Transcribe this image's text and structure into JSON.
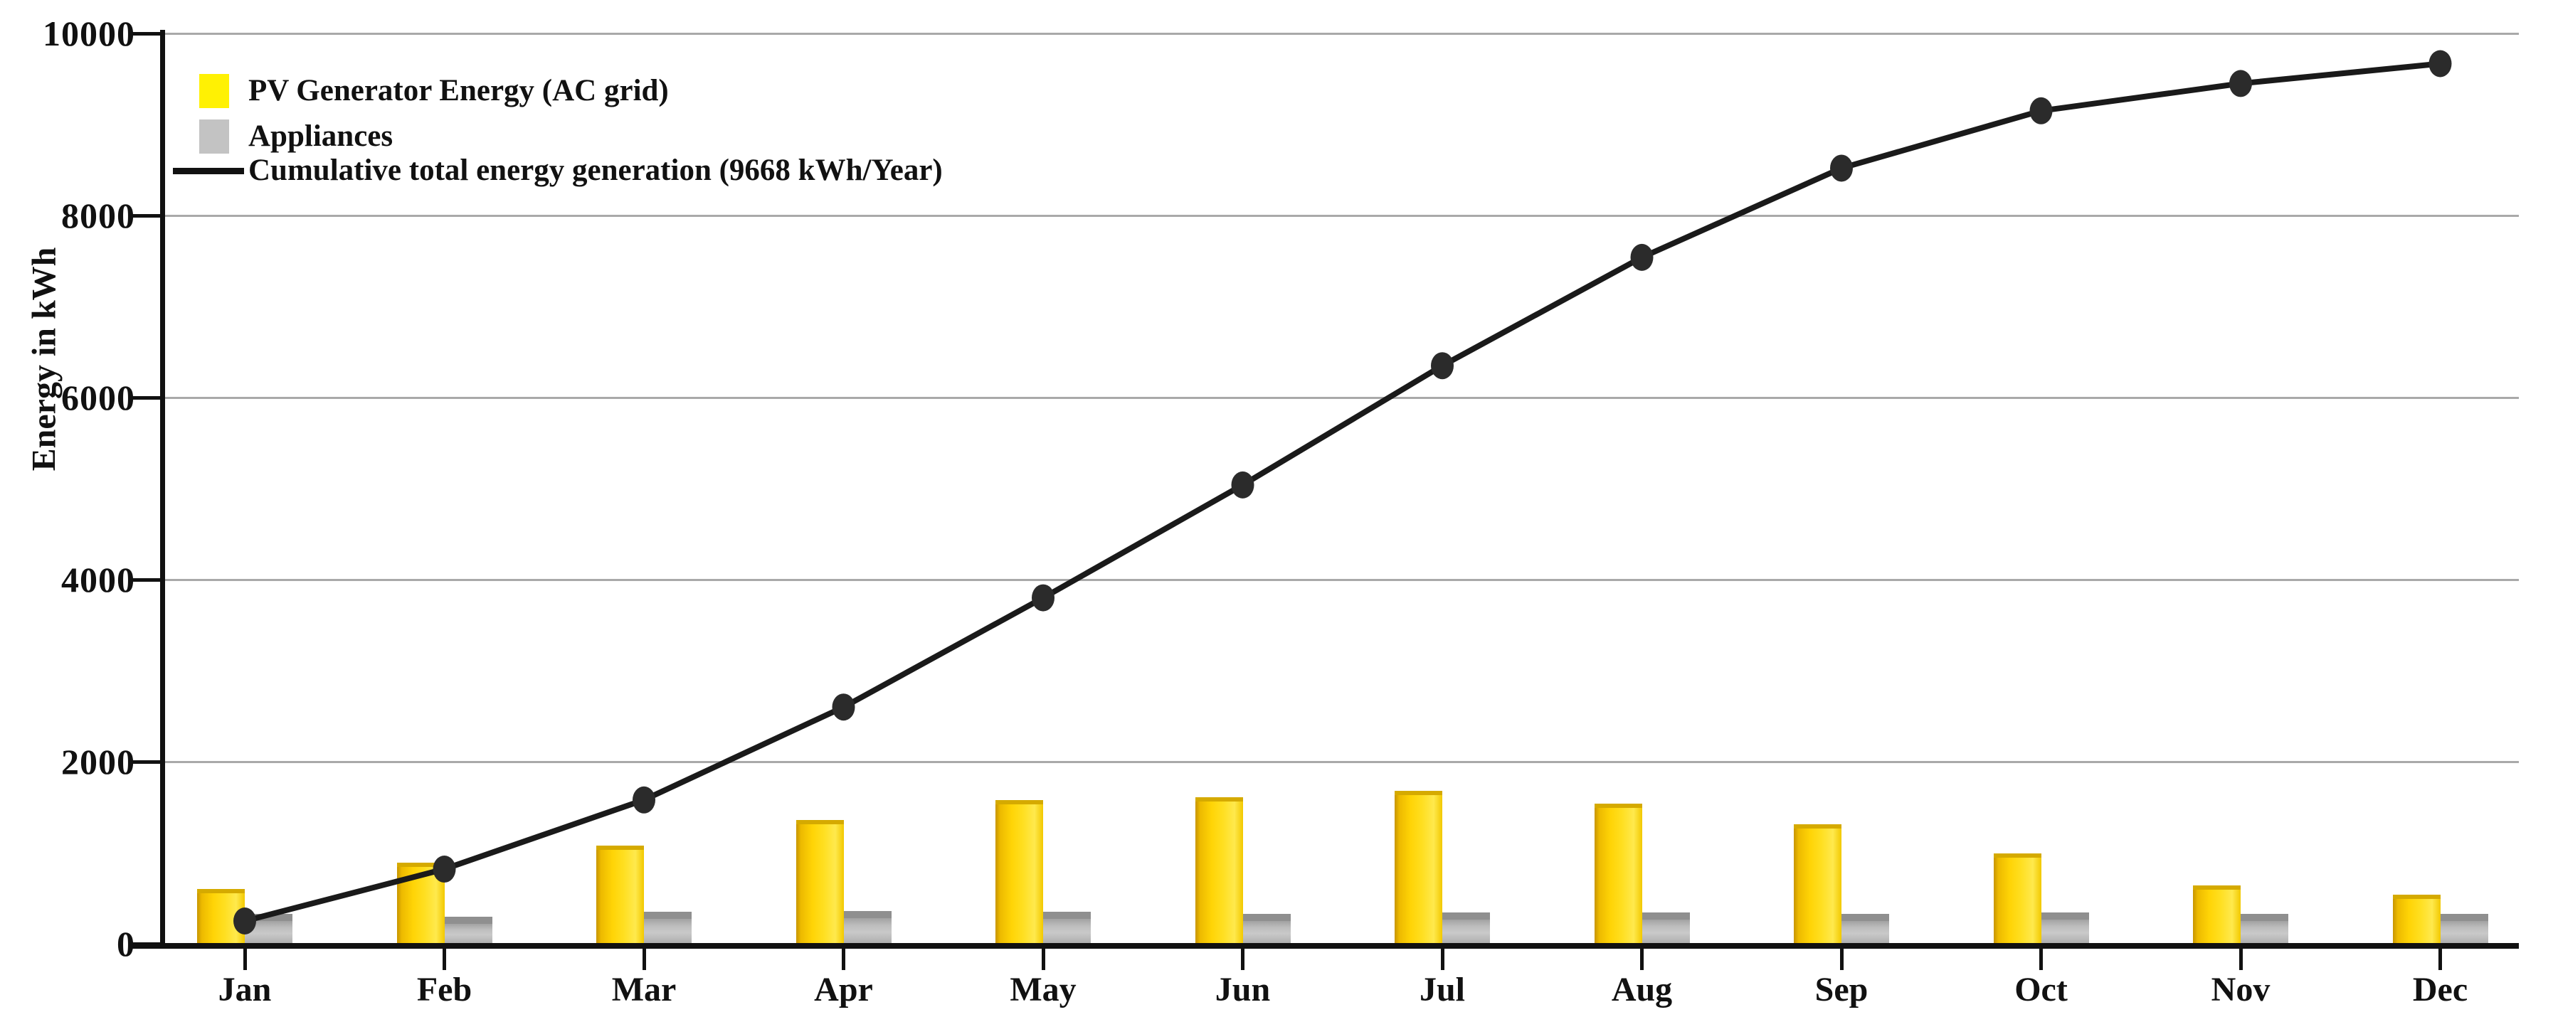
{
  "chart_data": {
    "type": "bar",
    "subtype": "grouped-bars-with-cumulative-line",
    "categories": [
      "Jan",
      "Feb",
      "Mar",
      "Apr",
      "May",
      "Jun",
      "Jul",
      "Aug",
      "Sep",
      "Oct",
      "Nov",
      "Dec"
    ],
    "series": [
      {
        "name": "PV Generator Energy (AC grid)",
        "type": "bar",
        "color": "#ffd406",
        "values": [
          600,
          890,
          1080,
          1360,
          1580,
          1610,
          1680,
          1540,
          1310,
          990,
          640,
          540
        ]
      },
      {
        "name": "Appliances",
        "type": "bar",
        "color": "#c3c3c3",
        "values": [
          330,
          300,
          350,
          360,
          350,
          325,
          340,
          340,
          325,
          345,
          325,
          325
        ]
      },
      {
        "name": "Cumulative total energy generation (9668 kWh/Year)",
        "type": "line",
        "color": "#1a1a1a",
        "values": [
          250,
          820,
          1580,
          2600,
          3800,
          5040,
          6350,
          7540,
          8520,
          9150,
          9450,
          9668
        ]
      }
    ],
    "annual_total_label": "9668 kWh/Year",
    "title": "",
    "xlabel": "",
    "ylabel": "Energy in kWh",
    "ylim": [
      0,
      10000
    ],
    "yticks": [
      0,
      2000,
      4000,
      6000,
      8000,
      10000
    ],
    "grid": "horizontal",
    "gridline_color": "#a9a9a9",
    "legend_position": "top-left",
    "axis_color": "#111111",
    "point_marker": "dark-ellipse"
  }
}
